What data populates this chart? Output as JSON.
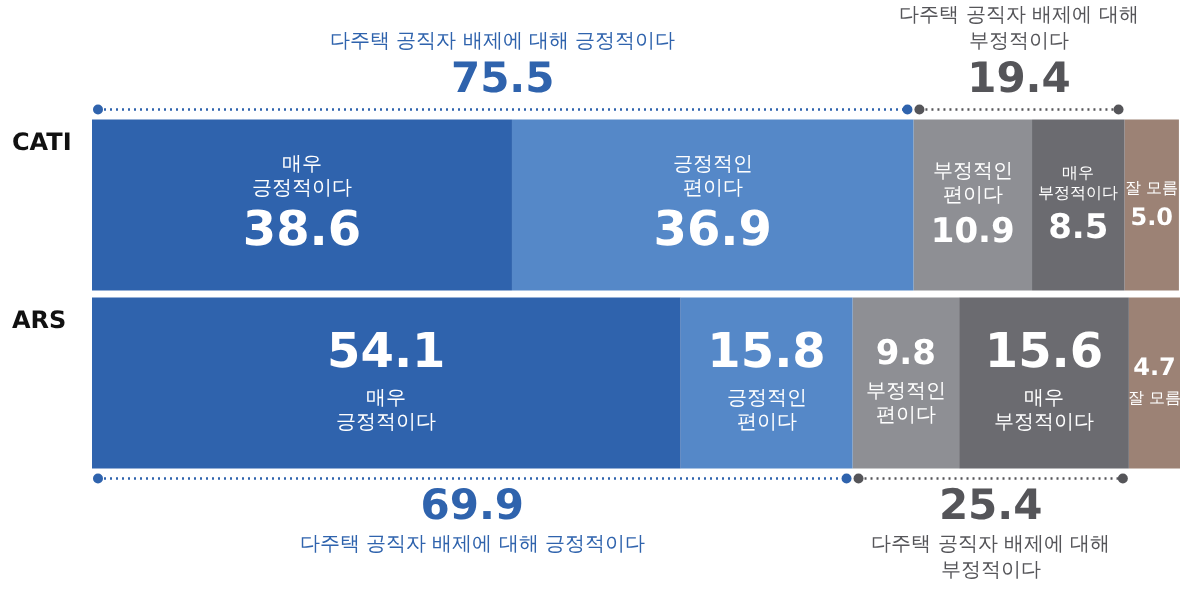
{
  "chart_data": {
    "type": "bar",
    "orientation": "horizontal",
    "stacked": true,
    "legend": false,
    "categories": [
      "CATI",
      "ARS"
    ],
    "series": [
      {
        "name": "매우 긍정적이다",
        "color": "#2f63ad",
        "values": [
          38.6,
          54.1
        ],
        "value_labels": [
          "38.6",
          "54.1"
        ]
      },
      {
        "name": "긍정적인 편이다",
        "color": "#5588c8",
        "values": [
          36.9,
          15.8
        ],
        "value_labels": [
          "36.9",
          "15.8"
        ]
      },
      {
        "name": "부정적인 편이다",
        "color": "#8e8f94",
        "values": [
          10.9,
          9.8
        ],
        "value_labels": [
          "10.9",
          "9.8"
        ]
      },
      {
        "name": "매우 부정적이다",
        "color": "#6b6b70",
        "values": [
          8.5,
          15.6
        ],
        "value_labels": [
          "8.5",
          "15.6"
        ]
      },
      {
        "name": "잘 모름",
        "color": "#9c8275",
        "values": [
          5.0,
          4.7
        ],
        "value_labels": [
          "5.0",
          "4.7"
        ]
      }
    ],
    "annotations": [
      "다주택 공직자 배제에 대해 긍정적이다",
      "75.5",
      "다주택 공직자 배제에 대해 부정적이다",
      "19.4",
      "69.9",
      "다주택 공직자 배제에 대해 긍정적이다",
      "25.4",
      "다주택 공직자 배제에 대해 부정적이다"
    ]
  }
}
